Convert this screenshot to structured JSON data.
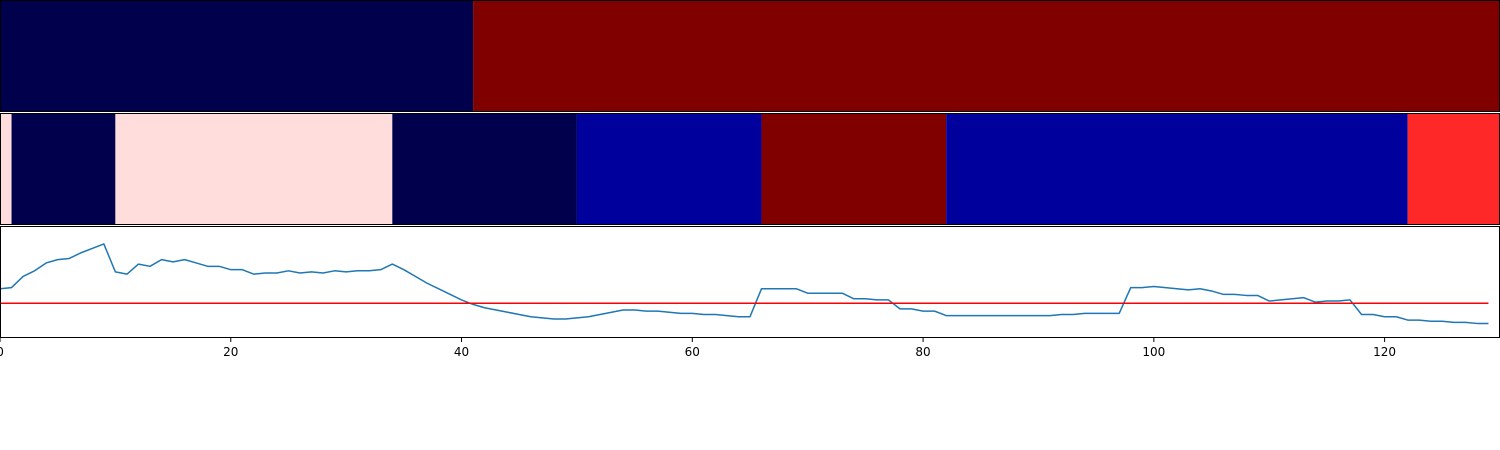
{
  "chart_data": [
    {
      "type": "heatmap",
      "colormap": "seismic",
      "xlim": [
        0,
        130
      ],
      "segments": [
        {
          "start": 0,
          "end": 41,
          "color": "#00004c"
        },
        {
          "start": 41,
          "end": 130,
          "color": "#800000"
        }
      ]
    },
    {
      "type": "heatmap",
      "colormap": "seismic",
      "xlim": [
        0,
        130
      ],
      "segments": [
        {
          "start": 0,
          "end": 1,
          "color": "#ffdddd"
        },
        {
          "start": 1,
          "end": 10,
          "color": "#00004c"
        },
        {
          "start": 10,
          "end": 34,
          "color": "#ffdddd"
        },
        {
          "start": 34,
          "end": 50,
          "color": "#00004c"
        },
        {
          "start": 50,
          "end": 66,
          "color": "#00009c"
        },
        {
          "start": 66,
          "end": 82,
          "color": "#800000"
        },
        {
          "start": 82,
          "end": 122,
          "color": "#00009c"
        },
        {
          "start": 122,
          "end": 130,
          "color": "#ff2828"
        }
      ]
    },
    {
      "type": "line",
      "title": "",
      "xlabel": "",
      "ylabel": "",
      "xlim": [
        0,
        130
      ],
      "ylim": [
        0,
        1
      ],
      "xticks": [
        "0",
        "20",
        "40",
        "60",
        "80",
        "100",
        "120"
      ],
      "grid": false,
      "series": [
        {
          "color": "#1f77b4",
          "x": [
            0,
            1,
            2,
            3,
            4,
            5,
            6,
            7,
            8,
            9,
            10,
            11,
            12,
            13,
            14,
            15,
            16,
            17,
            18,
            19,
            20,
            21,
            22,
            23,
            24,
            25,
            26,
            27,
            28,
            29,
            30,
            31,
            32,
            33,
            34,
            35,
            36,
            37,
            38,
            39,
            40,
            41,
            42,
            43,
            44,
            45,
            46,
            47,
            48,
            49,
            50,
            51,
            52,
            53,
            54,
            55,
            56,
            57,
            58,
            59,
            60,
            61,
            62,
            63,
            64,
            65,
            66,
            67,
            68,
            69,
            70,
            71,
            72,
            73,
            74,
            75,
            76,
            77,
            78,
            79,
            80,
            81,
            82,
            83,
            84,
            85,
            86,
            87,
            88,
            89,
            90,
            91,
            92,
            93,
            94,
            95,
            96,
            97,
            98,
            99,
            100,
            101,
            102,
            103,
            104,
            105,
            106,
            107,
            108,
            109,
            110,
            111,
            112,
            113,
            114,
            115,
            116,
            117,
            118,
            119,
            120,
            121,
            122,
            123,
            124,
            125,
            126,
            127,
            128,
            129
          ],
          "y": [
            0.44,
            0.45,
            0.55,
            0.6,
            0.67,
            0.7,
            0.71,
            0.76,
            0.8,
            0.84,
            0.59,
            0.57,
            0.66,
            0.64,
            0.7,
            0.68,
            0.7,
            0.67,
            0.64,
            0.64,
            0.61,
            0.61,
            0.57,
            0.58,
            0.58,
            0.6,
            0.58,
            0.59,
            0.58,
            0.6,
            0.59,
            0.6,
            0.6,
            0.61,
            0.66,
            0.61,
            0.55,
            0.49,
            0.44,
            0.39,
            0.34,
            0.3,
            0.27,
            0.25,
            0.23,
            0.21,
            0.19,
            0.18,
            0.17,
            0.17,
            0.18,
            0.19,
            0.21,
            0.23,
            0.25,
            0.25,
            0.24,
            0.24,
            0.23,
            0.22,
            0.22,
            0.21,
            0.21,
            0.2,
            0.19,
            0.19,
            0.44,
            0.44,
            0.44,
            0.44,
            0.4,
            0.4,
            0.4,
            0.4,
            0.35,
            0.35,
            0.34,
            0.34,
            0.26,
            0.26,
            0.24,
            0.24,
            0.2,
            0.2,
            0.2,
            0.2,
            0.2,
            0.2,
            0.2,
            0.2,
            0.2,
            0.2,
            0.21,
            0.21,
            0.22,
            0.22,
            0.22,
            0.22,
            0.45,
            0.45,
            0.46,
            0.45,
            0.44,
            0.43,
            0.44,
            0.42,
            0.39,
            0.39,
            0.38,
            0.38,
            0.33,
            0.34,
            0.35,
            0.36,
            0.32,
            0.33,
            0.33,
            0.34,
            0.21,
            0.21,
            0.19,
            0.19,
            0.16,
            0.16,
            0.15,
            0.15,
            0.14,
            0.14,
            0.13,
            0.13
          ]
        },
        {
          "color": "#ff0000",
          "x": [
            0,
            129
          ],
          "y": [
            0.31,
            0.31
          ]
        }
      ]
    }
  ]
}
